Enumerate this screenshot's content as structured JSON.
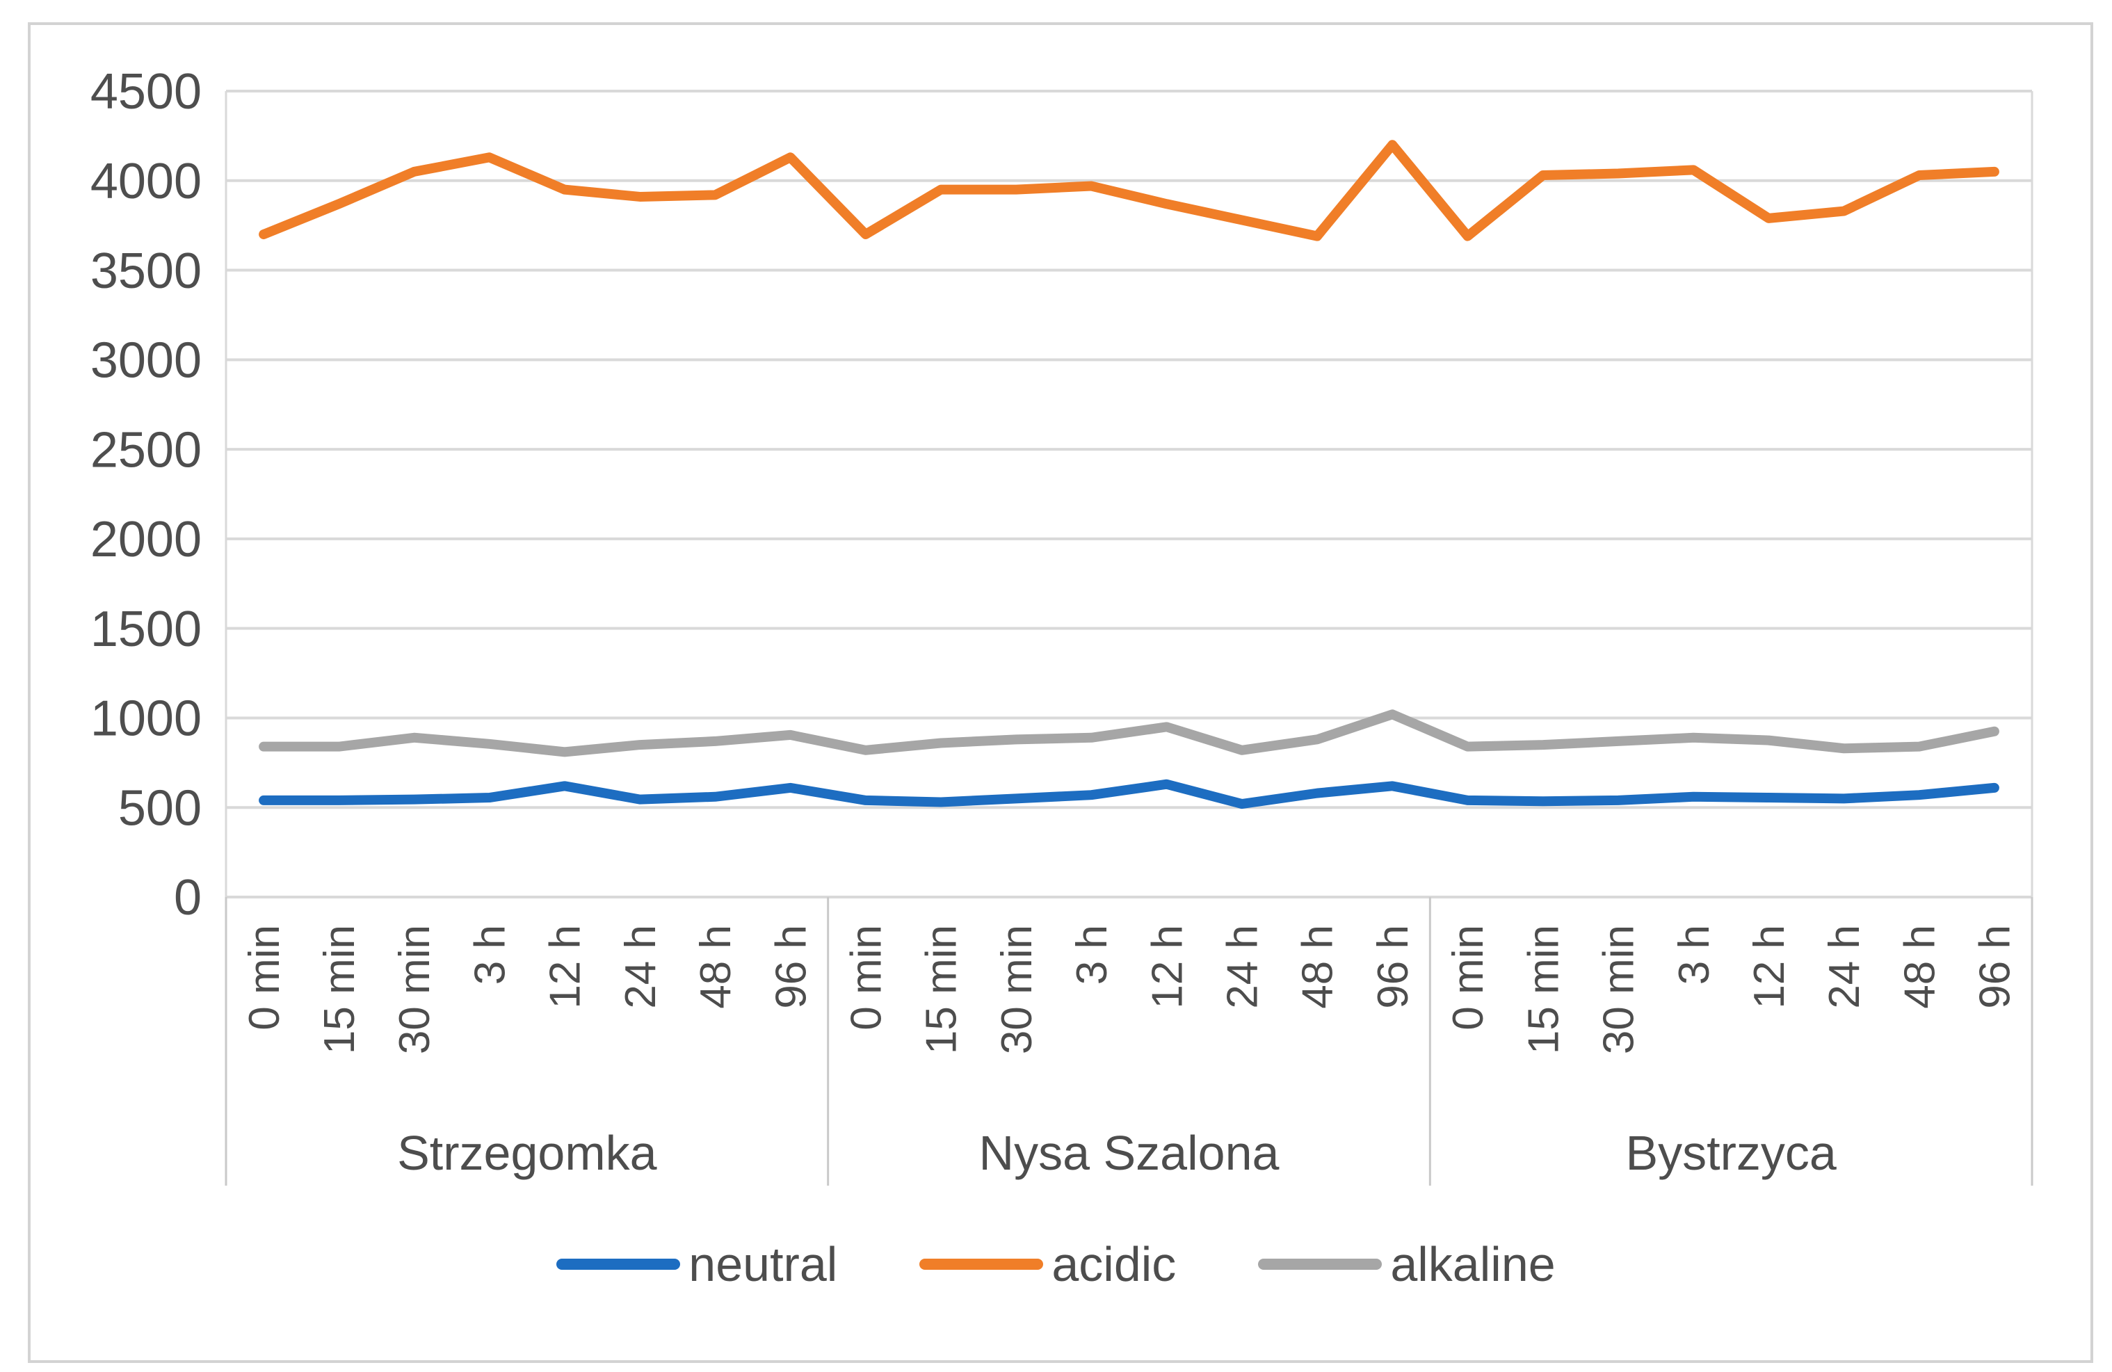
{
  "chart_data": {
    "type": "line",
    "title": "",
    "groups": [
      "Strzegomka",
      "Nysa Szalona",
      "Bystrzyca"
    ],
    "time_labels": [
      "0 min",
      "15 min",
      "30 min",
      "3 h",
      "12 h",
      "24 h",
      "48 h",
      "96 h"
    ],
    "y_axis": {
      "min": 0,
      "max": 4500,
      "step": 500,
      "tick_labels": [
        "0",
        "500",
        "1000",
        "1500",
        "2000",
        "2500",
        "3000",
        "3500",
        "4000",
        "4500"
      ]
    },
    "grid": "horizontal",
    "legend_position": "bottom",
    "series": [
      {
        "name": "neutral",
        "color": "#1d6dc1",
        "values": [
          540,
          540,
          545,
          555,
          620,
          545,
          560,
          610,
          540,
          530,
          550,
          570,
          630,
          520,
          580,
          620,
          540,
          535,
          540,
          560,
          555,
          550,
          570,
          610
        ]
      },
      {
        "name": "acidic",
        "color": "#f07e28",
        "values": [
          3700,
          3870,
          4050,
          4130,
          3950,
          3910,
          3920,
          4130,
          3700,
          3950,
          3950,
          3970,
          3870,
          3780,
          3690,
          4200,
          3690,
          4030,
          4040,
          4060,
          3790,
          3830,
          4030,
          4050
        ]
      },
      {
        "name": "alkaline",
        "color": "#a6a6a6",
        "values": [
          840,
          840,
          890,
          855,
          810,
          850,
          870,
          905,
          820,
          860,
          880,
          890,
          950,
          820,
          880,
          1020,
          840,
          850,
          870,
          890,
          875,
          830,
          840,
          925
        ]
      }
    ],
    "colors": {
      "gridline": "#d9d9d9",
      "axis_text": "#4e4e4e",
      "category_text": "#4d4d4d",
      "separator": "#c9c9c9",
      "figure_border": "#d3d3d3",
      "background": "#ffffff"
    }
  }
}
